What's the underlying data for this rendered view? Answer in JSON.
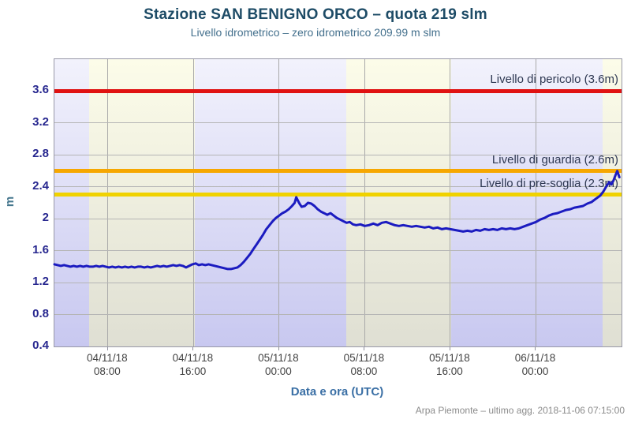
{
  "header": {
    "title": "Stazione SAN BENIGNO ORCO – quota 219 slm",
    "subtitle": "Livello idrometrico – zero idrometrico 209.99 m slm"
  },
  "footer": {
    "credit": "Arpa Piemonte – ultimo agg. 2018-11-06 07:15:00"
  },
  "chart_data": {
    "type": "line",
    "title": "Stazione SAN BENIGNO ORCO – quota 219 slm",
    "subtitle": "Livello idrometrico – zero idrometrico 209.99 m slm",
    "xlabel": "Data e ora (UTC)",
    "ylabel": "m",
    "x_unit": "hours_since_2018-11-04_00:00_UTC",
    "xlim": [
      3,
      56
    ],
    "ylim": [
      0.4,
      4.0
    ],
    "grid": true,
    "yticks": [
      0.4,
      0.8,
      1.2,
      1.6,
      2,
      2.4,
      2.8,
      3.2,
      3.6
    ],
    "ytick_labels": [
      "0.4",
      "0.8",
      "1.2",
      "1.6",
      "2",
      "2.4",
      "2.8",
      "3.2",
      "3.6"
    ],
    "xticks": [
      {
        "hour": 8,
        "date": "04/11/18",
        "time": "08:00"
      },
      {
        "hour": 16,
        "date": "04/11/18",
        "time": "16:00"
      },
      {
        "hour": 24,
        "date": "05/11/18",
        "time": "00:00"
      },
      {
        "hour": 32,
        "date": "05/11/18",
        "time": "08:00"
      },
      {
        "hour": 40,
        "date": "05/11/18",
        "time": "16:00"
      },
      {
        "hour": 48,
        "date": "06/11/18",
        "time": "00:00"
      }
    ],
    "thresholds": [
      {
        "label": "Livello di pericolo (3.6m)",
        "value": 3.6,
        "color": "#e01212"
      },
      {
        "label": "Livello di guardia (2.6m)",
        "value": 2.6,
        "color": "#f6a700"
      },
      {
        "label": "Livello di pre-soglia (2.3m)",
        "value": 2.3,
        "color": "#f0d200"
      }
    ],
    "bands": [
      {
        "type": "night",
        "from": 3,
        "to": 6.25
      },
      {
        "type": "day",
        "from": 6.25,
        "to": 16.1
      },
      {
        "type": "night",
        "from": 16.1,
        "to": 30.25
      },
      {
        "type": "day",
        "from": 30.25,
        "to": 40.1
      },
      {
        "type": "night",
        "from": 40.1,
        "to": 54.25
      },
      {
        "type": "day",
        "from": 54.25,
        "to": 56
      }
    ],
    "band_colors": {
      "day_top": "#fcfce9",
      "day_bottom": "#dfdfd3",
      "night_top": "#f2f2fc",
      "night_bottom": "#c8c8f0"
    },
    "series": [
      {
        "name": "Livello idrometrico",
        "color": "#1b1bc0",
        "points": [
          [
            3,
            1.43
          ],
          [
            3.3,
            1.42
          ],
          [
            3.6,
            1.41
          ],
          [
            3.9,
            1.42
          ],
          [
            4.2,
            1.41
          ],
          [
            4.5,
            1.4
          ],
          [
            4.8,
            1.41
          ],
          [
            5.1,
            1.4
          ],
          [
            5.4,
            1.41
          ],
          [
            5.7,
            1.4
          ],
          [
            6,
            1.41
          ],
          [
            6.3,
            1.4
          ],
          [
            6.6,
            1.4
          ],
          [
            6.9,
            1.41
          ],
          [
            7.2,
            1.4
          ],
          [
            7.5,
            1.41
          ],
          [
            7.8,
            1.4
          ],
          [
            8.1,
            1.39
          ],
          [
            8.4,
            1.4
          ],
          [
            8.7,
            1.39
          ],
          [
            9,
            1.4
          ],
          [
            9.3,
            1.39
          ],
          [
            9.6,
            1.4
          ],
          [
            9.9,
            1.39
          ],
          [
            10.2,
            1.4
          ],
          [
            10.5,
            1.39
          ],
          [
            10.8,
            1.4
          ],
          [
            11.1,
            1.4
          ],
          [
            11.4,
            1.39
          ],
          [
            11.7,
            1.4
          ],
          [
            12,
            1.39
          ],
          [
            12.3,
            1.4
          ],
          [
            12.6,
            1.41
          ],
          [
            12.9,
            1.4
          ],
          [
            13.2,
            1.41
          ],
          [
            13.5,
            1.4
          ],
          [
            13.8,
            1.41
          ],
          [
            14.1,
            1.42
          ],
          [
            14.4,
            1.41
          ],
          [
            14.7,
            1.42
          ],
          [
            15,
            1.41
          ],
          [
            15.3,
            1.39
          ],
          [
            15.6,
            1.41
          ],
          [
            15.9,
            1.43
          ],
          [
            16.2,
            1.44
          ],
          [
            16.5,
            1.42
          ],
          [
            16.8,
            1.43
          ],
          [
            17.1,
            1.42
          ],
          [
            17.4,
            1.43
          ],
          [
            17.7,
            1.42
          ],
          [
            18,
            1.41
          ],
          [
            18.3,
            1.4
          ],
          [
            18.6,
            1.39
          ],
          [
            18.9,
            1.38
          ],
          [
            19.2,
            1.37
          ],
          [
            19.5,
            1.37
          ],
          [
            19.8,
            1.38
          ],
          [
            20.1,
            1.39
          ],
          [
            20.4,
            1.42
          ],
          [
            20.7,
            1.46
          ],
          [
            21,
            1.51
          ],
          [
            21.3,
            1.56
          ],
          [
            21.6,
            1.62
          ],
          [
            21.9,
            1.68
          ],
          [
            22.2,
            1.74
          ],
          [
            22.5,
            1.8
          ],
          [
            22.8,
            1.87
          ],
          [
            23.1,
            1.92
          ],
          [
            23.4,
            1.97
          ],
          [
            23.7,
            2.01
          ],
          [
            24,
            2.04
          ],
          [
            24.3,
            2.07
          ],
          [
            24.6,
            2.09
          ],
          [
            24.9,
            2.12
          ],
          [
            25.2,
            2.16
          ],
          [
            25.45,
            2.2
          ],
          [
            25.6,
            2.27
          ],
          [
            25.75,
            2.23
          ],
          [
            25.9,
            2.19
          ],
          [
            26.1,
            2.15
          ],
          [
            26.4,
            2.16
          ],
          [
            26.7,
            2.2
          ],
          [
            27,
            2.19
          ],
          [
            27.3,
            2.16
          ],
          [
            27.6,
            2.12
          ],
          [
            27.9,
            2.09
          ],
          [
            28.2,
            2.07
          ],
          [
            28.5,
            2.05
          ],
          [
            28.8,
            2.07
          ],
          [
            29.1,
            2.04
          ],
          [
            29.4,
            2.01
          ],
          [
            29.7,
            1.99
          ],
          [
            30,
            1.97
          ],
          [
            30.3,
            1.95
          ],
          [
            30.6,
            1.96
          ],
          [
            30.9,
            1.93
          ],
          [
            31.2,
            1.92
          ],
          [
            31.6,
            1.93
          ],
          [
            32,
            1.91
          ],
          [
            32.4,
            1.92
          ],
          [
            32.8,
            1.94
          ],
          [
            33.2,
            1.92
          ],
          [
            33.6,
            1.95
          ],
          [
            34,
            1.96
          ],
          [
            34.4,
            1.94
          ],
          [
            34.8,
            1.92
          ],
          [
            35.2,
            1.91
          ],
          [
            35.6,
            1.92
          ],
          [
            36,
            1.91
          ],
          [
            36.4,
            1.9
          ],
          [
            36.8,
            1.91
          ],
          [
            37.2,
            1.9
          ],
          [
            37.6,
            1.89
          ],
          [
            38,
            1.9
          ],
          [
            38.4,
            1.88
          ],
          [
            38.8,
            1.89
          ],
          [
            39.2,
            1.87
          ],
          [
            39.6,
            1.88
          ],
          [
            40,
            1.87
          ],
          [
            40.4,
            1.86
          ],
          [
            40.8,
            1.85
          ],
          [
            41.2,
            1.84
          ],
          [
            41.6,
            1.85
          ],
          [
            42,
            1.84
          ],
          [
            42.4,
            1.86
          ],
          [
            42.8,
            1.85
          ],
          [
            43.2,
            1.87
          ],
          [
            43.6,
            1.86
          ],
          [
            44,
            1.87
          ],
          [
            44.4,
            1.86
          ],
          [
            44.8,
            1.88
          ],
          [
            45.2,
            1.87
          ],
          [
            45.6,
            1.88
          ],
          [
            46,
            1.87
          ],
          [
            46.4,
            1.88
          ],
          [
            46.8,
            1.9
          ],
          [
            47.2,
            1.92
          ],
          [
            47.6,
            1.94
          ],
          [
            48,
            1.96
          ],
          [
            48.4,
            1.99
          ],
          [
            48.8,
            2.01
          ],
          [
            49.2,
            2.04
          ],
          [
            49.6,
            2.06
          ],
          [
            50,
            2.07
          ],
          [
            50.4,
            2.09
          ],
          [
            50.8,
            2.11
          ],
          [
            51.2,
            2.12
          ],
          [
            51.6,
            2.14
          ],
          [
            52,
            2.15
          ],
          [
            52.4,
            2.16
          ],
          [
            52.8,
            2.19
          ],
          [
            53.2,
            2.21
          ],
          [
            53.6,
            2.25
          ],
          [
            54,
            2.29
          ],
          [
            54.3,
            2.34
          ],
          [
            54.6,
            2.41
          ],
          [
            54.85,
            2.46
          ],
          [
            55.05,
            2.43
          ],
          [
            55.25,
            2.48
          ],
          [
            55.45,
            2.55
          ],
          [
            55.6,
            2.6
          ],
          [
            55.8,
            2.52
          ]
        ]
      }
    ]
  }
}
